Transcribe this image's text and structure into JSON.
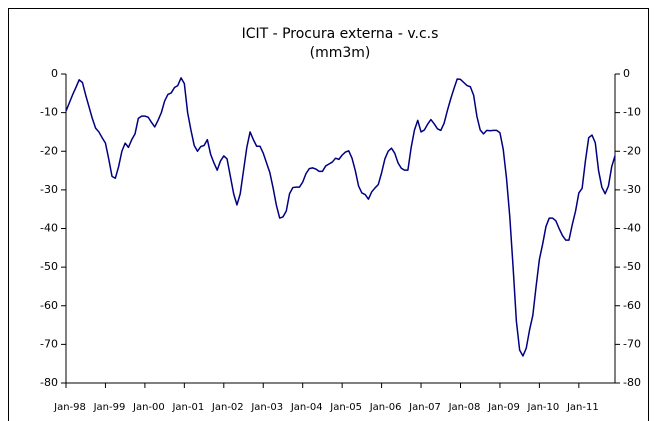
{
  "chart_data": {
    "type": "line",
    "title": "ICIT - Procura externa - v.c.s",
    "subtitle": "(mm3m)",
    "color": "#000080",
    "categories": [
      "Jan-98",
      null,
      null,
      null,
      null,
      null,
      null,
      null,
      null,
      null,
      null,
      null,
      "Jan-99",
      null,
      null,
      null,
      null,
      null,
      null,
      null,
      null,
      null,
      null,
      null,
      "Jan-00",
      null,
      null,
      null,
      null,
      null,
      null,
      null,
      null,
      null,
      null,
      null,
      "Jan-01",
      null,
      null,
      null,
      null,
      null,
      null,
      null,
      null,
      null,
      null,
      null,
      "Jan-02",
      null,
      null,
      null,
      null,
      null,
      null,
      null,
      null,
      null,
      null,
      null,
      "Jan-03",
      null,
      null,
      null,
      null,
      null,
      null,
      null,
      null,
      null,
      null,
      null,
      "Jan-04",
      null,
      null,
      null,
      null,
      null,
      null,
      null,
      null,
      null,
      null,
      null,
      "Jan-05",
      null,
      null,
      null,
      null,
      null,
      null,
      null,
      null,
      null,
      null,
      null,
      "Jan-06",
      null,
      null,
      null,
      null,
      null,
      null,
      null,
      null,
      null,
      null,
      null,
      "Jan-07",
      null,
      null,
      null,
      null,
      null,
      null,
      null,
      null,
      null,
      null,
      null,
      "Jan-08",
      null,
      null,
      null,
      null,
      null,
      null,
      null,
      null,
      null,
      null,
      null,
      "Jan-09",
      null,
      null,
      null,
      null,
      null,
      null,
      null,
      null,
      null,
      null,
      null,
      "Jan-10",
      null,
      null,
      null,
      null,
      null,
      null,
      null,
      null,
      null,
      null,
      null,
      "Jan-11",
      null,
      null,
      null,
      null,
      null,
      null,
      null,
      null,
      null,
      null,
      null
    ],
    "values": [
      -9.6,
      -7.5,
      -5.4,
      -3.5,
      -1.5,
      -2.2,
      -5.5,
      -8.5,
      -11.5,
      -14,
      -15,
      -16.5,
      -17.9,
      -22,
      -26.5,
      -27,
      -24,
      -20,
      -17.9,
      -19,
      -17,
      -15.5,
      -11.5,
      -10.9,
      -10.9,
      -11.2,
      -12.5,
      -13.7,
      -12,
      -10,
      -7,
      -5.3,
      -4.9,
      -3.5,
      -3,
      -1,
      -2.5,
      -10,
      -14.5,
      -18.5,
      -20,
      -18.8,
      -18.5,
      -17,
      -20.8,
      -23,
      -24.9,
      -22.5,
      -21.2,
      -22,
      -26.5,
      -31,
      -33.9,
      -31,
      -25,
      -19,
      -15,
      -17,
      -18.7,
      -18.7,
      -20.5,
      -23,
      -25.5,
      -29.5,
      -34,
      -37.3,
      -37,
      -35.5,
      -31,
      -29.4,
      -29.3,
      -29.3,
      -28,
      -25.8,
      -24.5,
      -24.3,
      -24.6,
      -25.2,
      -25.2,
      -23.8,
      -23.3,
      -22.8,
      -21.8,
      -22.1,
      -21,
      -20.2,
      -19.9,
      -21.8,
      -25,
      -29,
      -30.8,
      -31.2,
      -32.4,
      -30.5,
      -29.5,
      -28.6,
      -25.6,
      -22,
      -20,
      -19.2,
      -20.5,
      -23,
      -24.4,
      -24.9,
      -24.9,
      -19,
      -14.5,
      -12,
      -15,
      -14.5,
      -13,
      -11.8,
      -12.9,
      -14.2,
      -14.6,
      -12.8,
      -9.5,
      -6.5,
      -3.8,
      -1.3,
      -1.4,
      -2.2,
      -3,
      -3.3,
      -5.5,
      -11,
      -14.5,
      -15.5,
      -14.6,
      -14.7,
      -14.6,
      -14.6,
      -15.2,
      -19.5,
      -27,
      -37,
      -50,
      -64,
      -71.5,
      -73,
      -71,
      -66.3,
      -62.5,
      -55,
      -48,
      -44,
      -39.5,
      -37.3,
      -37.3,
      -38,
      -40,
      -41.8,
      -43,
      -43,
      -39,
      -35.5,
      -30.8,
      -29.6,
      -22.5,
      -16.5,
      -15.8,
      -17.8,
      -25,
      -29.3,
      -31,
      -29,
      -24,
      -21.2
    ],
    "ylim": [
      -80,
      0
    ],
    "yticks": [
      0,
      -10,
      -20,
      -30,
      -40,
      -50,
      -60,
      -70,
      -80
    ],
    "y2lim": [
      -80,
      0
    ],
    "y2ticks": [
      0,
      -10,
      -20,
      -30,
      -40,
      -50,
      -60,
      -70,
      -80
    ],
    "grid": false
  }
}
